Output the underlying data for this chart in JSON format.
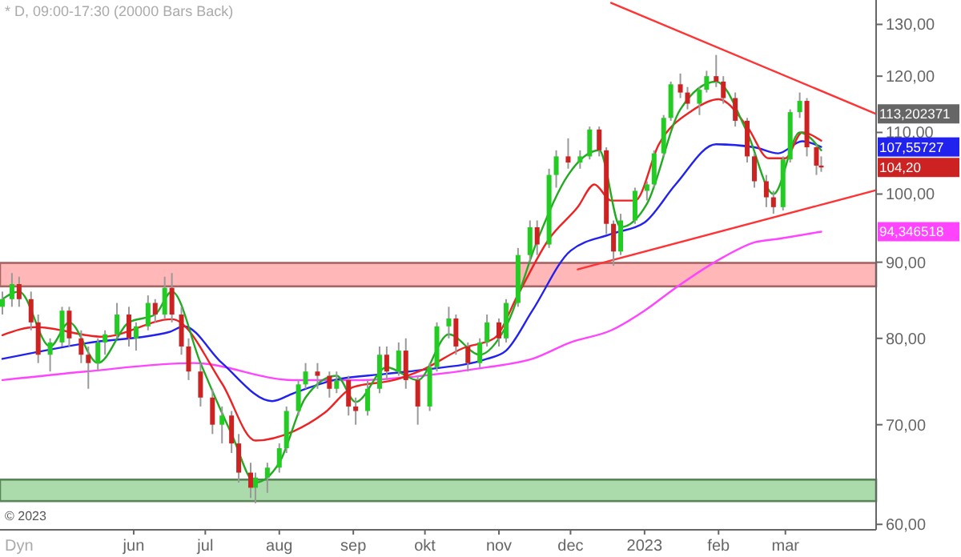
{
  "chart_data": {
    "type": "candlestick",
    "title": "* D, 09:00-17:30 (20000 Bars Back)",
    "x": [
      "2022-04-07",
      "2022-04-11",
      "2022-04-14",
      "2022-04-19",
      "2022-04-22",
      "2022-04-27",
      "2022-05-02",
      "2022-05-05",
      "2022-05-10",
      "2022-05-13",
      "2022-05-17",
      "2022-05-20",
      "2022-05-25",
      "2022-05-30",
      "2022-06-02",
      "2022-06-07",
      "2022-06-10",
      "2022-06-14",
      "2022-06-17",
      "2022-06-21",
      "2022-06-24",
      "2022-06-29",
      "2022-07-04",
      "2022-07-08",
      "2022-07-12",
      "2022-07-15",
      "2022-07-20",
      "2022-07-22",
      "2022-07-27",
      "2022-08-01",
      "2022-08-04",
      "2022-08-09",
      "2022-08-12",
      "2022-08-17",
      "2022-08-22",
      "2022-08-25",
      "2022-08-30",
      "2022-09-02",
      "2022-09-07",
      "2022-09-12",
      "2022-09-15",
      "2022-09-20",
      "2022-09-23",
      "2022-09-28",
      "2022-10-03",
      "2022-10-06",
      "2022-10-11",
      "2022-10-14",
      "2022-10-19",
      "2022-10-24",
      "2022-10-27",
      "2022-11-01",
      "2022-11-04",
      "2022-11-09",
      "2022-11-14",
      "2022-11-17",
      "2022-11-22",
      "2022-11-25",
      "2022-11-30",
      "2022-12-05",
      "2022-12-09",
      "2022-12-13",
      "2022-12-16",
      "2022-12-19",
      "2022-12-22",
      "2022-12-28",
      "2023-01-02",
      "2023-01-05",
      "2023-01-09",
      "2023-01-12",
      "2023-01-16",
      "2023-01-19",
      "2023-01-24",
      "2023-01-27",
      "2023-01-31",
      "2023-02-03",
      "2023-02-08",
      "2023-02-13",
      "2023-02-16",
      "2023-02-21",
      "2023-02-24",
      "2023-02-28",
      "2023-03-03",
      "2023-03-07",
      "2023-03-10",
      "2023-03-14",
      "2023-03-16"
    ],
    "ohlc": [
      [
        84,
        86,
        83,
        85
      ],
      [
        85,
        88.5,
        84,
        87
      ],
      [
        87,
        88,
        84,
        85
      ],
      [
        85,
        86,
        81,
        82
      ],
      [
        82,
        83,
        77,
        78
      ],
      [
        78,
        80,
        76,
        79.5
      ],
      [
        79.5,
        84,
        79,
        83.5
      ],
      [
        83.5,
        84,
        79,
        80
      ],
      [
        80,
        81,
        77,
        78
      ],
      [
        78,
        79,
        74,
        77
      ],
      [
        77,
        80,
        76,
        79.5
      ],
      [
        79.5,
        81,
        78,
        80.5
      ],
      [
        80.5,
        84.5,
        80,
        83
      ],
      [
        83,
        84,
        79,
        80
      ],
      [
        80,
        82,
        78.5,
        81.5
      ],
      [
        81.5,
        85.5,
        81,
        84.5
      ],
      [
        84.5,
        85,
        82,
        83
      ],
      [
        83,
        88,
        82.5,
        86.5
      ],
      [
        86.5,
        88.5,
        82,
        83
      ],
      [
        83,
        84,
        78,
        79
      ],
      [
        79,
        80,
        75,
        76
      ],
      [
        76,
        77,
        72,
        73
      ],
      [
        73,
        74,
        69,
        70
      ],
      [
        70,
        72,
        68,
        71
      ],
      [
        71,
        71.5,
        67,
        68
      ],
      [
        68,
        69,
        64,
        65
      ],
      [
        65,
        66,
        62.5,
        63.5
      ],
      [
        63.5,
        65,
        62,
        64.5
      ],
      [
        64.5,
        66,
        63,
        65.5
      ],
      [
        65.5,
        68,
        65,
        67.5
      ],
      [
        67.5,
        72,
        67,
        71.5
      ],
      [
        71.5,
        75,
        71,
        74.5
      ],
      [
        74.5,
        77,
        74,
        76
      ],
      [
        76,
        77,
        74,
        75.5
      ],
      [
        75.5,
        76,
        73,
        74
      ],
      [
        74,
        76,
        73.5,
        75
      ],
      [
        75,
        75.5,
        71,
        72
      ],
      [
        72,
        73,
        70,
        71.5
      ],
      [
        71.5,
        75,
        71,
        74
      ],
      [
        74,
        79,
        73.5,
        78
      ],
      [
        78,
        79,
        75,
        76
      ],
      [
        76,
        79.5,
        75.5,
        78.5
      ],
      [
        78.5,
        80,
        74,
        75
      ],
      [
        75,
        75.5,
        70,
        72
      ],
      [
        72,
        77,
        71.5,
        76.5
      ],
      [
        76.5,
        82,
        76,
        81.5
      ],
      [
        81.5,
        84,
        80,
        82.5
      ],
      [
        82.5,
        83,
        78,
        79
      ],
      [
        79,
        79.5,
        76,
        77
      ],
      [
        77,
        80,
        76.5,
        79.5
      ],
      [
        79.5,
        83,
        79,
        82
      ],
      [
        82,
        82.5,
        79,
        80
      ],
      [
        80,
        85,
        79.5,
        84.5
      ],
      [
        84.5,
        92,
        84,
        91
      ],
      [
        91,
        96,
        90,
        95
      ],
      [
        95,
        96,
        91,
        92.5
      ],
      [
        92.5,
        104,
        92,
        103
      ],
      [
        103,
        107,
        101,
        106
      ],
      [
        106,
        109,
        104,
        105
      ],
      [
        105,
        107,
        104,
        106
      ],
      [
        106,
        111,
        105.5,
        110.5
      ],
      [
        110.5,
        111,
        106,
        107
      ],
      [
        107,
        107.5,
        94,
        95.5
      ],
      [
        95.5,
        96,
        89.5,
        91.5
      ],
      [
        91.5,
        97,
        91,
        96
      ],
      [
        96,
        101,
        95.5,
        100.5
      ],
      [
        100.5,
        102,
        99,
        101.5
      ],
      [
        101.5,
        107,
        101,
        106.5
      ],
      [
        106.5,
        113,
        106,
        112.5
      ],
      [
        112.5,
        119,
        112,
        118.5
      ],
      [
        118.5,
        120.5,
        116,
        117
      ],
      [
        117,
        118,
        114,
        115
      ],
      [
        115,
        118,
        113,
        117.5
      ],
      [
        117.5,
        121,
        117,
        120
      ],
      [
        120,
        124,
        118,
        119
      ],
      [
        119,
        120,
        115,
        116
      ],
      [
        116,
        117,
        111,
        112
      ],
      [
        112,
        112.5,
        105,
        106
      ],
      [
        106,
        106.5,
        101,
        102
      ],
      [
        102,
        103,
        98,
        99.5
      ],
      [
        99.5,
        100.5,
        97,
        98
      ],
      [
        98,
        106,
        97.5,
        105.5
      ],
      [
        105.5,
        114,
        105,
        113.5
      ],
      [
        113.5,
        117,
        112.5,
        115.5
      ],
      [
        115.5,
        116,
        106,
        107.5
      ],
      [
        107.5,
        108,
        103,
        104.5
      ],
      [
        104.5,
        106,
        103.5,
        104.2
      ]
    ],
    "series": [
      {
        "type": "line",
        "color": "#ff44ff",
        "x": [
          "2022-04-07",
          "2022-05-12",
          "2022-06-26",
          "2022-08-07",
          "2022-09-04",
          "2022-09-30",
          "2022-10-27",
          "2022-11-15",
          "2022-12-01",
          "2022-12-18",
          "2023-01-01",
          "2023-01-14",
          "2023-02-03",
          "2023-02-16",
          "2023-02-26",
          "2023-03-16"
        ],
        "values": [
          75,
          76,
          77,
          75,
          75,
          75.5,
          76.5,
          77.5,
          79.5,
          81,
          83.5,
          86.5,
          90.7,
          92.8,
          93.3,
          94.346518
        ]
      },
      {
        "type": "line",
        "color": "#2222ee",
        "x": [
          "2022-04-07",
          "2022-05-12",
          "2022-06-16",
          "2022-06-22",
          "2022-07-08",
          "2022-07-29",
          "2022-08-07",
          "2022-08-24",
          "2022-09-14",
          "2022-09-30",
          "2022-10-27",
          "2022-11-04",
          "2022-11-15",
          "2022-12-01",
          "2022-12-18",
          "2023-01-01",
          "2023-01-14",
          "2023-01-31",
          "2023-02-16",
          "2023-02-26",
          "2023-03-08",
          "2023-03-16"
        ],
        "values": [
          77.5,
          79.4,
          80.8,
          81.5,
          77,
          72.6,
          73.5,
          75,
          75.7,
          76.2,
          77.5,
          78.5,
          83.5,
          91.6,
          94,
          95.7,
          101.5,
          108,
          107.5,
          106.5,
          108.5,
          107.55727
        ]
      },
      {
        "type": "line",
        "color": "#ee2222",
        "x": [
          "2022-04-07",
          "2022-04-21",
          "2022-05-19",
          "2022-06-17",
          "2022-07-08",
          "2022-07-22",
          "2022-08-07",
          "2022-08-20",
          "2022-09-01",
          "2022-09-18",
          "2022-09-30",
          "2022-10-17",
          "2022-10-30",
          "2022-11-09",
          "2022-11-22",
          "2022-12-04",
          "2022-12-11",
          "2022-12-18",
          "2022-12-28",
          "2023-01-07",
          "2023-01-21",
          "2023-02-01",
          "2023-02-13",
          "2023-02-22",
          "2023-03-01",
          "2023-03-08",
          "2023-03-16"
        ],
        "values": [
          80.4,
          81.4,
          80.2,
          82.4,
          74.6,
          68.3,
          69.3,
          71.3,
          74.2,
          75,
          76.2,
          78.8,
          80,
          85.6,
          93.3,
          98,
          101.5,
          99,
          99,
          108,
          113.8,
          115.8,
          111,
          105.7,
          105.7,
          110,
          108.6
        ]
      },
      {
        "type": "line",
        "color": "#22aa22",
        "x": [
          "2022-04-07",
          "2022-04-14",
          "2022-04-27",
          "2022-05-05",
          "2022-05-17",
          "2022-05-30",
          "2022-06-10",
          "2022-06-17",
          "2022-06-29",
          "2022-07-12",
          "2022-07-22",
          "2022-08-01",
          "2022-08-12",
          "2022-08-25",
          "2022-09-02",
          "2022-09-15",
          "2022-09-28",
          "2022-10-11",
          "2022-10-24",
          "2022-11-04",
          "2022-11-17",
          "2022-11-30",
          "2022-12-13",
          "2022-12-22",
          "2023-01-02",
          "2023-01-16",
          "2023-01-31",
          "2023-02-13",
          "2023-02-24",
          "2023-03-07",
          "2023-03-16"
        ],
        "values": [
          85,
          86,
          79,
          82,
          77,
          82,
          83,
          86,
          77,
          69,
          64,
          66,
          73,
          75.5,
          72.5,
          76.5,
          75,
          80.5,
          78,
          81.5,
          93,
          103,
          107,
          95,
          98.5,
          114,
          119,
          110,
          100,
          110,
          107
        ]
      },
      {
        "type": "line",
        "color": "#ff3333",
        "x": [
          "2022-12-18",
          "2023-04-08"
        ],
        "values": [
          134.4,
          113.202371
        ]
      },
      {
        "type": "line",
        "color": "#ff3333",
        "x": [
          "2022-12-04",
          "2023-04-08"
        ],
        "values": [
          89,
          100.6
        ]
      }
    ],
    "log": "y",
    "xlim": [
      "2022-04-06",
      "2023-04-08"
    ],
    "ylim": [
      59.5,
      135
    ],
    "xticks": [
      {
        "value": "2022-06-01",
        "label": "jun"
      },
      {
        "value": "2022-07-01",
        "label": "jul"
      },
      {
        "value": "2022-08-01",
        "label": "aug"
      },
      {
        "value": "2022-09-01",
        "label": "sep"
      },
      {
        "value": "2022-10-01",
        "label": "okt"
      },
      {
        "value": "2022-11-01",
        "label": "nov"
      },
      {
        "value": "2022-12-01",
        "label": "dec"
      },
      {
        "value": "2023-01-01",
        "label": "2023"
      },
      {
        "value": "2023-02-01",
        "label": "feb"
      },
      {
        "value": "2023-03-01",
        "label": "mar"
      }
    ],
    "yticks": [
      {
        "value": 60,
        "label": "60,00"
      },
      {
        "value": 70,
        "label": "70,00"
      },
      {
        "value": 80,
        "label": "80,00"
      },
      {
        "value": 90,
        "label": "90,00"
      },
      {
        "value": 100,
        "label": "100,00"
      },
      {
        "value": 110,
        "label": "110,00"
      },
      {
        "value": 120,
        "label": "120,00"
      },
      {
        "value": 130,
        "label": "130,00"
      }
    ],
    "bands": [
      {
        "axis": "y",
        "from": 86.7,
        "to": 89.9,
        "color": "#ff9999"
      },
      {
        "axis": "y",
        "from": 62.2,
        "to": 64.3,
        "color": "#88cc88"
      }
    ],
    "annotations": [
      "113,202371",
      "107,55727",
      "104,20",
      "94,346518",
      "© 2023",
      "Dyn"
    ],
    "grid": false
  }
}
